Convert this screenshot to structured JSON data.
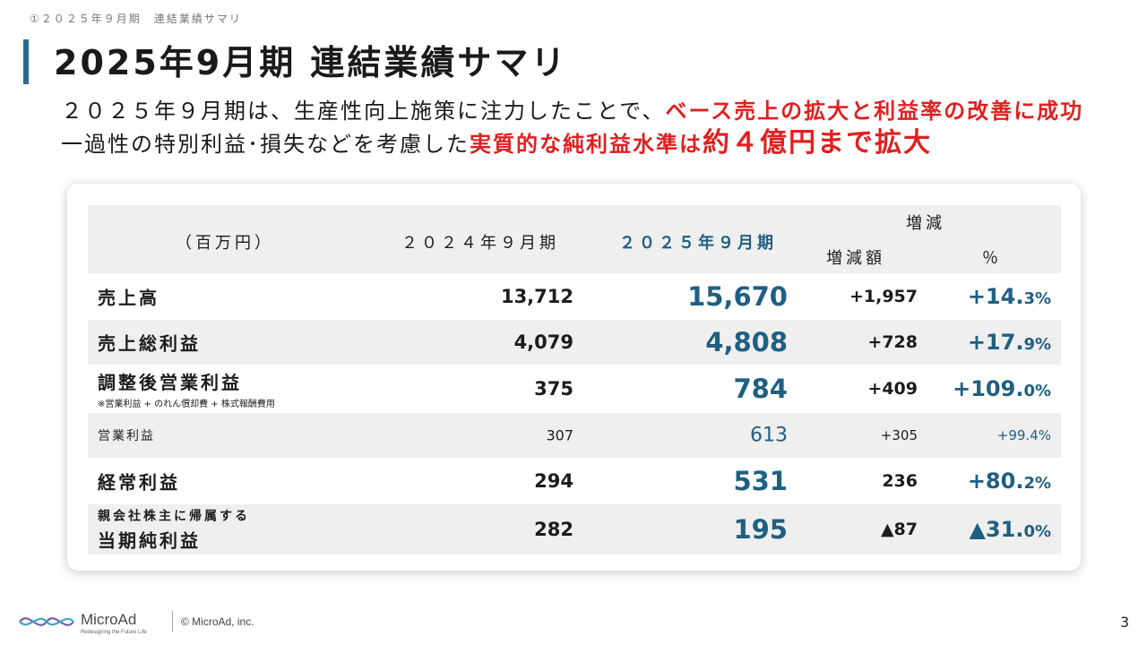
{
  "breadcrumb": "①２０２５年９月期　連結業績サマリ",
  "title": "2025年9月期 連結業績サマリ",
  "lead": {
    "line1_plain": "２０２５年９月期は、生産性向上施策に注力したことで、",
    "line1_red": "ベース売上の拡大と利益率の改善に成功",
    "line2_plain": "一過性の特別利益･損失などを考慮した",
    "line2_red": "実質的な純利益水準は",
    "line2_big": "約４億円まで拡大"
  },
  "table": {
    "unit_label": "（百万円）",
    "col_2024": "２０２４年９月期",
    "col_2025": "２０２５年９月期",
    "col_change": "増減",
    "col_change_amount": "増減額",
    "col_change_pct": "％",
    "rows": [
      {
        "label": "売上高",
        "v2024": "13,712",
        "v2025": "15,670",
        "diff": "+1,957",
        "pct_main": "+14.",
        "pct_dec": "3%"
      },
      {
        "label": "売上総利益",
        "v2024": "4,079",
        "v2025": "4,808",
        "diff": "+728",
        "pct_main": "+17.",
        "pct_dec": "9%"
      },
      {
        "label": "調整後営業利益",
        "note": "※営業利益 + のれん償却費 + 株式報酬費用",
        "v2024": "375",
        "v2025": "784",
        "diff": "+409",
        "pct_main": "+109.",
        "pct_dec": "0%"
      },
      {
        "label": "営業利益",
        "v2024": "307",
        "v2025": "613",
        "diff": "+305",
        "pct_main": "+99.4%",
        "pct_dec": ""
      },
      {
        "label": "経常利益",
        "v2024": "294",
        "v2025": "531",
        "diff": "236",
        "pct_main": "+80.",
        "pct_dec": "2%"
      },
      {
        "label_pre": "親会社株主に帰属する",
        "label": "当期純利益",
        "v2024": "282",
        "v2025": "195",
        "diff": "▲87",
        "pct_main": "▲31.",
        "pct_dec": "0%"
      }
    ]
  },
  "footer": {
    "logo_text": "MicroAd",
    "logo_tagline": "Redesigning the Future Life",
    "copyright": "© MicroAd, inc.",
    "page_number": "3"
  },
  "colors": {
    "accent": "#2c6a8c",
    "value_blue": "#1f5f82",
    "highlight_red": "#e02020"
  }
}
